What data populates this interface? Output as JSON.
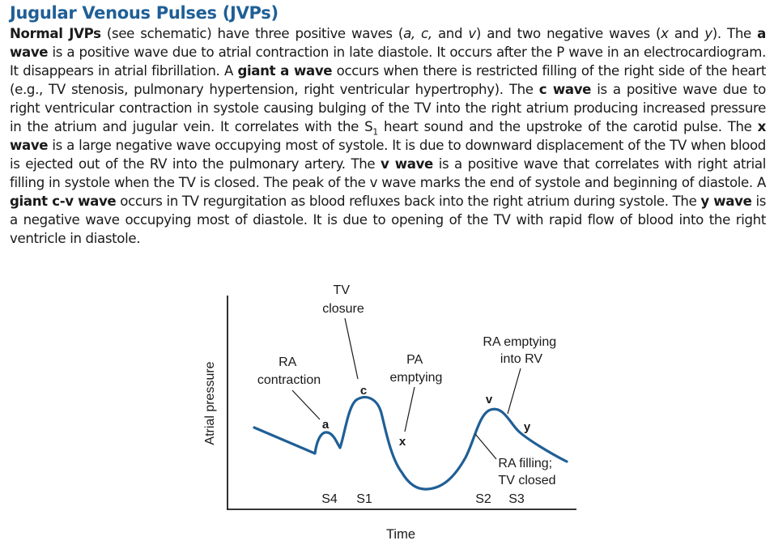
{
  "title": "Jugular Venous Pulses (JVPs)",
  "paragraph": {
    "s1": "Normal JVPs",
    "s2": " (see schematic) have three positive waves (",
    "s3": "a, c,",
    "s4": " and ",
    "s5": "v",
    "s6": ") and two negative waves (",
    "s7": "x",
    "s8": " and ",
    "s9": "y",
    "s10": "). The ",
    "s11": "a wave",
    "s12": " is a positive wave due to atrial contraction in late diastole. It occurs after the P wave in an electrocardiogram. It disappears in atrial fibrillation. A ",
    "s13": "giant a wave",
    "s14": " occurs when there is restricted filling of the right side of the heart (e.g., TV stenosis, pulmonary hypertension, right ventricular hypertrophy). The ",
    "s15": "c wave",
    "s16": " is a positive wave due to right ventricular contraction in systole causing bulging of the TV into the right atrium producing increased pressure in the atrium and jugular vein. It correlates with the S",
    "s17": "1",
    "s18": " heart sound and the upstroke of the carotid pulse. The ",
    "s19": "x wave",
    "s20": " is a large negative wave occupying most of systole. It is due to downward displacement of the TV when blood is ejected out of the RV into the pulmonary artery. The ",
    "s21": "v wave",
    "s22": " is a positive wave that correlates with right atrial filling in systole when the TV is closed. The peak of the v wave marks the end of systole and beginning of diastole. A ",
    "s23": "giant c-v wave",
    "s24": " occurs in TV regurgitation as blood refluxes back into the right atrium during systole. The ",
    "s25": "y wave",
    "s26": " is a negative wave occupying most of diastole. It is due to opening of the TV with rapid flow of blood into the right ventricle in diastole."
  },
  "figure": {
    "y_axis_label": "Atrial pressure",
    "x_axis_label": "Time",
    "wave_a": "a",
    "wave_c": "c",
    "wave_x": "x",
    "wave_v": "v",
    "wave_y": "y",
    "tv_closure_1": "TV",
    "tv_closure_2": "closure",
    "ra_contraction_1": "RA",
    "ra_contraction_2": "contraction",
    "pa_emptying_1": "PA",
    "pa_emptying_2": "emptying",
    "ra_emptying_1": "RA emptying",
    "ra_emptying_2": "into RV",
    "ra_filling_1": "RA filling;",
    "ra_filling_2": "TV closed",
    "s4": "S4",
    "s1": "S1",
    "s2": "S2",
    "s3": "S3",
    "curve_color": "#1f5f96"
  }
}
